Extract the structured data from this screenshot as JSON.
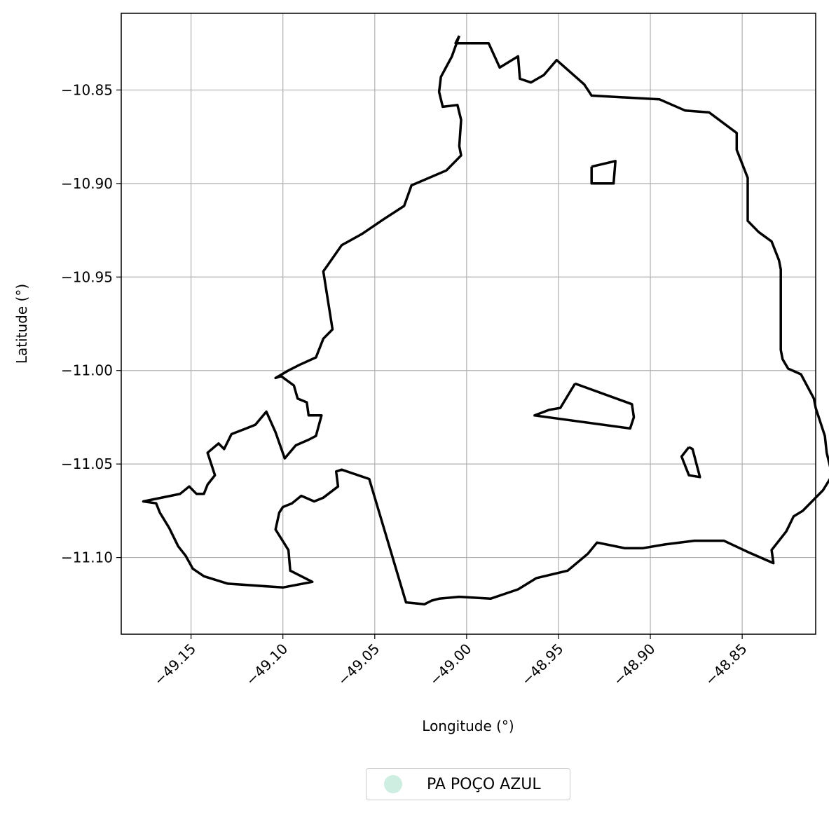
{
  "map": {
    "xlabel": "Longitude (°)",
    "ylabel": "Latitude (°)",
    "xlim": [
      -49.188,
      -48.81
    ],
    "ylim": [
      -11.141,
      -10.809
    ],
    "grid": true,
    "x_ticks": [
      "−49.15",
      "−49.10",
      "−49.05",
      "−49.00",
      "−48.95",
      "−48.90",
      "−48.85"
    ],
    "y_ticks": [
      "−10.85",
      "−10.90",
      "−10.95",
      "−11.00",
      "−11.05",
      "−11.10"
    ],
    "outline_color": "#000000",
    "grid_color": "#b0b0b0"
  },
  "chart_data": {
    "type": "map",
    "xlabel": "Longitude (°)",
    "ylabel": "Latitude (°)",
    "xlim": [
      -49.188,
      -48.81
    ],
    "ylim": [
      -11.141,
      -10.809
    ],
    "grid": true,
    "legend_position": "bottom-center (below map)",
    "features": [
      {
        "name": "PA POÇO AZUL",
        "kind": "outer boundary",
        "coords": [
          [
            -49.004,
            -10.821
          ],
          [
            -49.006,
            -10.825
          ],
          [
            -48.998,
            -10.825
          ],
          [
            -48.988,
            -10.825
          ],
          [
            -48.982,
            -10.838
          ],
          [
            -48.972,
            -10.832
          ],
          [
            -48.971,
            -10.844
          ],
          [
            -48.965,
            -10.846
          ],
          [
            -48.958,
            -10.842
          ],
          [
            -48.951,
            -10.834
          ],
          [
            -48.936,
            -10.847
          ],
          [
            -48.932,
            -10.853
          ],
          [
            -48.895,
            -10.855
          ],
          [
            -48.881,
            -10.861
          ],
          [
            -48.868,
            -10.862
          ],
          [
            -48.853,
            -10.873
          ],
          [
            -48.853,
            -10.882
          ],
          [
            -48.847,
            -10.897
          ],
          [
            -48.847,
            -10.906
          ],
          [
            -48.847,
            -10.92
          ],
          [
            -48.841,
            -10.926
          ],
          [
            -48.834,
            -10.931
          ],
          [
            -48.83,
            -10.941
          ],
          [
            -48.829,
            -10.946
          ],
          [
            -48.829,
            -10.965
          ],
          [
            -48.829,
            -10.976
          ],
          [
            -48.829,
            -10.989
          ],
          [
            -48.828,
            -10.994
          ],
          [
            -48.825,
            -10.999
          ],
          [
            -48.818,
            -11.002
          ],
          [
            -48.811,
            -11.015
          ],
          [
            -48.81,
            -11.02
          ],
          [
            -48.805,
            -11.035
          ],
          [
            -48.804,
            -11.044
          ],
          [
            -48.801,
            -11.056
          ],
          [
            -48.806,
            -11.064
          ],
          [
            -48.817,
            -11.075
          ],
          [
            -48.822,
            -11.078
          ],
          [
            -48.826,
            -11.086
          ],
          [
            -48.834,
            -11.096
          ],
          [
            -48.833,
            -11.103
          ],
          [
            -48.847,
            -11.097
          ],
          [
            -48.86,
            -11.091
          ],
          [
            -48.876,
            -11.091
          ],
          [
            -48.892,
            -11.093
          ],
          [
            -48.904,
            -11.095
          ],
          [
            -48.914,
            -11.095
          ],
          [
            -48.929,
            -11.092
          ],
          [
            -48.934,
            -11.098
          ],
          [
            -48.945,
            -11.107
          ],
          [
            -48.962,
            -11.111
          ],
          [
            -48.972,
            -11.117
          ],
          [
            -48.981,
            -11.12
          ],
          [
            -48.987,
            -11.122
          ],
          [
            -49.004,
            -11.121
          ],
          [
            -49.015,
            -11.122
          ],
          [
            -49.019,
            -11.123
          ],
          [
            -49.023,
            -11.125
          ],
          [
            -49.033,
            -11.124
          ],
          [
            -49.053,
            -11.058
          ],
          [
            -49.068,
            -11.053
          ],
          [
            -49.071,
            -11.054
          ],
          [
            -49.07,
            -11.062
          ],
          [
            -49.078,
            -11.068
          ],
          [
            -49.083,
            -11.07
          ],
          [
            -49.09,
            -11.067
          ],
          [
            -49.095,
            -11.071
          ],
          [
            -49.1,
            -11.073
          ],
          [
            -49.102,
            -11.076
          ],
          [
            -49.104,
            -11.085
          ],
          [
            -49.097,
            -11.096
          ],
          [
            -49.096,
            -11.107
          ],
          [
            -49.084,
            -11.113
          ],
          [
            -49.1,
            -11.116
          ],
          [
            -49.13,
            -11.114
          ],
          [
            -49.143,
            -11.11
          ],
          [
            -49.149,
            -11.106
          ],
          [
            -49.153,
            -11.099
          ],
          [
            -49.157,
            -11.094
          ],
          [
            -49.162,
            -11.084
          ],
          [
            -49.167,
            -11.076
          ],
          [
            -49.169,
            -11.071
          ],
          [
            -49.176,
            -11.07
          ],
          [
            -49.156,
            -11.066
          ],
          [
            -49.151,
            -11.062
          ],
          [
            -49.147,
            -11.066
          ],
          [
            -49.143,
            -11.066
          ],
          [
            -49.141,
            -11.061
          ],
          [
            -49.137,
            -11.056
          ],
          [
            -49.141,
            -11.044
          ],
          [
            -49.135,
            -11.039
          ],
          [
            -49.132,
            -11.042
          ],
          [
            -49.128,
            -11.034
          ],
          [
            -49.12,
            -11.031
          ],
          [
            -49.115,
            -11.029
          ],
          [
            -49.109,
            -11.022
          ],
          [
            -49.104,
            -11.033
          ],
          [
            -49.099,
            -11.047
          ],
          [
            -49.093,
            -11.04
          ],
          [
            -49.086,
            -11.037
          ],
          [
            -49.082,
            -11.035
          ],
          [
            -49.079,
            -11.024
          ],
          [
            -49.086,
            -11.024
          ],
          [
            -49.087,
            -11.017
          ],
          [
            -49.092,
            -11.015
          ],
          [
            -49.094,
            -11.008
          ],
          [
            -49.101,
            -11.003
          ],
          [
            -49.104,
            -11.004
          ],
          [
            -49.097,
            -11.0
          ],
          [
            -49.091,
            -10.997
          ],
          [
            -49.082,
            -10.993
          ],
          [
            -49.078,
            -10.983
          ],
          [
            -49.073,
            -10.978
          ],
          [
            -49.078,
            -10.947
          ],
          [
            -49.068,
            -10.933
          ],
          [
            -49.057,
            -10.927
          ],
          [
            -49.045,
            -10.919
          ],
          [
            -49.034,
            -10.912
          ],
          [
            -49.03,
            -10.901
          ],
          [
            -49.011,
            -10.893
          ],
          [
            -49.003,
            -10.885
          ],
          [
            -49.004,
            -10.88
          ],
          [
            -49.003,
            -10.866
          ],
          [
            -49.005,
            -10.858
          ],
          [
            -49.013,
            -10.859
          ],
          [
            -49.015,
            -10.851
          ],
          [
            -49.014,
            -10.843
          ],
          [
            -49.008,
            -10.832
          ],
          [
            -49.004,
            -10.821
          ]
        ]
      },
      {
        "name": "PA POÇO AZUL",
        "kind": "inner ring north",
        "coords": [
          [
            -48.932,
            -10.891
          ],
          [
            -48.919,
            -10.888
          ],
          [
            -48.92,
            -10.9
          ],
          [
            -48.932,
            -10.9
          ],
          [
            -48.932,
            -10.891
          ]
        ]
      },
      {
        "name": "PA POÇO AZUL",
        "kind": "inner ring middle",
        "coords": [
          [
            -48.941,
            -11.007
          ],
          [
            -48.91,
            -11.018
          ],
          [
            -48.909,
            -11.025
          ],
          [
            -48.911,
            -11.031
          ],
          [
            -48.963,
            -11.024
          ],
          [
            -48.955,
            -11.021
          ],
          [
            -48.949,
            -11.02
          ],
          [
            -48.941,
            -11.007
          ]
        ]
      },
      {
        "name": "PA POÇO AZUL",
        "kind": "inner ring southeast",
        "coords": [
          [
            -48.879,
            -11.041
          ],
          [
            -48.883,
            -11.046
          ],
          [
            -48.879,
            -11.056
          ],
          [
            -48.873,
            -11.057
          ],
          [
            -48.877,
            -11.042
          ],
          [
            -48.879,
            -11.041
          ]
        ]
      }
    ],
    "legend": [
      {
        "label": "PA POÇO AZUL",
        "color": "#cdeee0",
        "marker": "circle"
      }
    ]
  }
}
